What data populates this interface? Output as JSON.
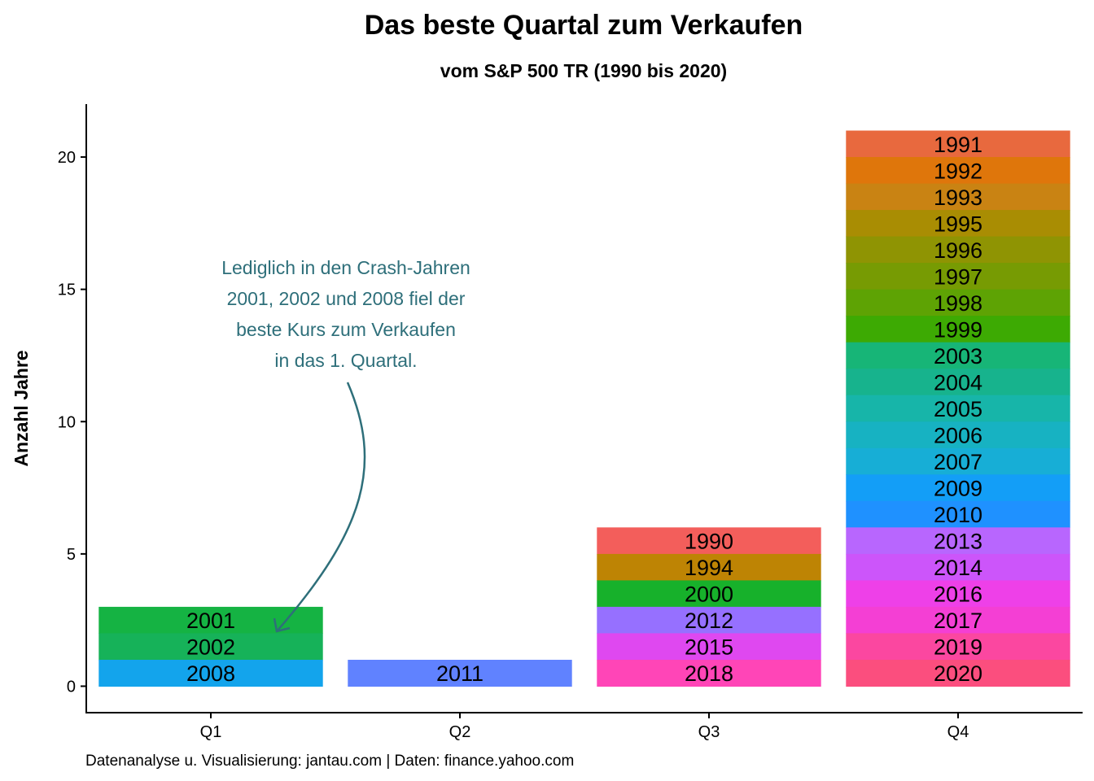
{
  "chart_data": {
    "type": "bar",
    "stacked": true,
    "title": "Das beste Quartal zum Verkaufen",
    "subtitle": "vom S&P 500 TR (1990 bis 2020)",
    "xlabel": "",
    "ylabel": "Anzahl Jahre",
    "ylim": [
      -1,
      22
    ],
    "yticks": [
      0,
      5,
      10,
      15,
      20
    ],
    "grid": false,
    "legend": "none",
    "categories": [
      "Q1",
      "Q2",
      "Q3",
      "Q4"
    ],
    "stacks": [
      {
        "category": "Q1",
        "segments": [
          {
            "label": "2001",
            "color": "#15B343"
          },
          {
            "label": "2002",
            "color": "#16B259"
          },
          {
            "label": "2008",
            "color": "#13A4EC"
          }
        ]
      },
      {
        "category": "Q2",
        "segments": [
          {
            "label": "2011",
            "color": "#6082FF"
          }
        ]
      },
      {
        "category": "Q3",
        "segments": [
          {
            "label": "1990",
            "color": "#F35E5B"
          },
          {
            "label": "1994",
            "color": "#BE8404"
          },
          {
            "label": "2000",
            "color": "#17B12B"
          },
          {
            "label": "2012",
            "color": "#9670FF"
          },
          {
            "label": "2015",
            "color": "#DF48F0"
          },
          {
            "label": "2018",
            "color": "#FF45B7"
          }
        ]
      },
      {
        "category": "Q4",
        "segments": [
          {
            "label": "1991",
            "color": "#E8693E"
          },
          {
            "label": "1992",
            "color": "#DF760B"
          },
          {
            "label": "1993",
            "color": "#C98313"
          },
          {
            "label": "1995",
            "color": "#A98D03"
          },
          {
            "label": "1996",
            "color": "#8F9403"
          },
          {
            "label": "1997",
            "color": "#779B03"
          },
          {
            "label": "1998",
            "color": "#5EA304"
          },
          {
            "label": "1999",
            "color": "#3DAA03"
          },
          {
            "label": "2003",
            "color": "#17B577"
          },
          {
            "label": "2004",
            "color": "#17B38D"
          },
          {
            "label": "2005",
            "color": "#17B5A9"
          },
          {
            "label": "2006",
            "color": "#17B2C2"
          },
          {
            "label": "2007",
            "color": "#17AED6"
          },
          {
            "label": "2009",
            "color": "#139EF7"
          },
          {
            "label": "2010",
            "color": "#1F91FF"
          },
          {
            "label": "2013",
            "color": "#B866FE"
          },
          {
            "label": "2014",
            "color": "#CC55FA"
          },
          {
            "label": "2016",
            "color": "#EE40E8"
          },
          {
            "label": "2017",
            "color": "#F43FD4"
          },
          {
            "label": "2019",
            "color": "#FB47A0"
          },
          {
            "label": "2020",
            "color": "#FB4E7E"
          }
        ]
      }
    ],
    "annotation": {
      "lines": [
        "Lediglich in den Crash-Jahren",
        "2001, 2002 und 2008 fiel der",
        "beste Kurs zum Verkaufen",
        "in das 1. Quartal."
      ],
      "color": "#2E6F7A",
      "points_to": {
        "category": "Q1",
        "value": 2
      }
    },
    "caption": "Datenanalyse u. Visualisierung: jantau.com | Daten: finance.yahoo.com"
  }
}
